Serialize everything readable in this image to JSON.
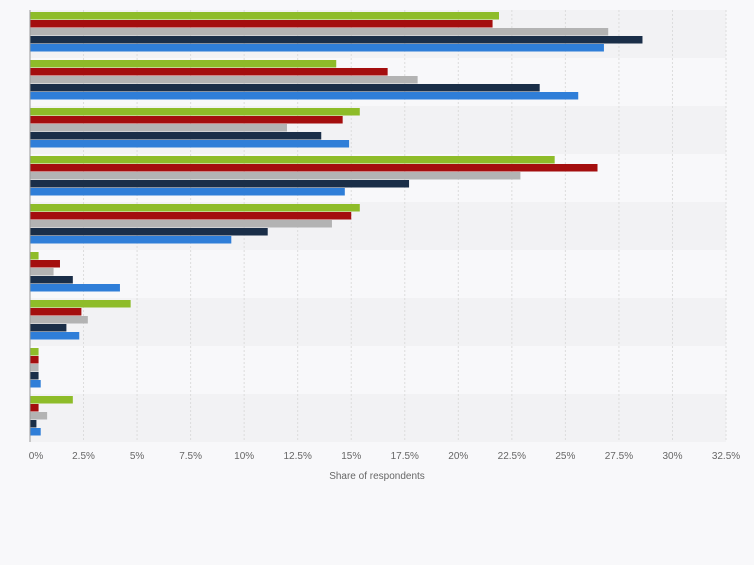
{
  "chart_data": {
    "type": "bar",
    "orientation": "horizontal",
    "title": "",
    "xlabel": "Share of respondents",
    "ylabel": "",
    "xlim": [
      0,
      32.5
    ],
    "x_ticks": [
      "0%",
      "2.5%",
      "5%",
      "7.5%",
      "10%",
      "12.5%",
      "15%",
      "17.5%",
      "20%",
      "22.5%",
      "25%",
      "27.5%",
      "30%",
      "32.5%"
    ],
    "grid": true,
    "legend": "none",
    "categories": [
      "",
      "",
      "",
      "",
      "",
      "",
      "",
      "",
      ""
    ],
    "series": [
      {
        "color": "#8ebc29",
        "values": [
          21.9,
          14.3,
          15.4,
          24.5,
          15.4,
          0.4,
          4.7,
          0.4,
          2.0
        ]
      },
      {
        "color": "#a40e0e",
        "values": [
          21.6,
          16.7,
          14.6,
          26.5,
          15.0,
          1.4,
          2.4,
          0.4,
          0.4
        ]
      },
      {
        "color": "#b3b3b3",
        "values": [
          27.0,
          18.1,
          12.0,
          22.9,
          14.1,
          1.1,
          2.7,
          0.4,
          0.8
        ]
      },
      {
        "color": "#1a2e48",
        "values": [
          28.6,
          23.8,
          13.6,
          17.7,
          11.1,
          2.0,
          1.7,
          0.4,
          0.3
        ]
      },
      {
        "color": "#2f7ed8",
        "values": [
          26.8,
          25.6,
          14.9,
          14.7,
          9.4,
          4.2,
          2.3,
          0.5,
          0.5
        ]
      }
    ]
  }
}
